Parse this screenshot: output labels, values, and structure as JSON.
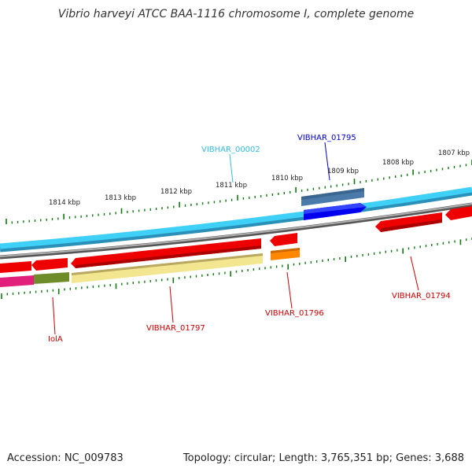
{
  "title": "Vibrio harveyi ATCC BAA-1116 chromosome I, complete genome",
  "footer": {
    "accession": "Accession: NC_009783",
    "summary": "Topology: circular; Length: 3,765,351 bp; Genes: 3,688"
  },
  "ticks": [
    "1814 kbp",
    "1813 kbp",
    "1812 kbp",
    "1811 kbp",
    "1810 kbp",
    "1809 kbp",
    "1808 kbp",
    "1807 kbp"
  ],
  "gene_labels": {
    "vibhar_00002": "VIBHAR_00002",
    "vibhar_01795": "VIBHAR_01795",
    "vibhar_01794": "VIBHAR_01794",
    "vibhar_01796": "VIBHAR_01796",
    "vibhar_01797": "VIBHAR_01797",
    "iola": "IolA"
  },
  "colors": {
    "blue_label": "#0000cc",
    "cyan_label": "#33bbdd",
    "red_label": "#cc0000",
    "cds": "#ee0000",
    "cyan_track": "#33ccf5",
    "blue_gene": "#0000ee",
    "steel_gene": "#4a7aaa",
    "orange_gene": "#ff8800",
    "yellow_gene": "#f2e690",
    "olive_gene": "#6f8c2a",
    "magenta_gene": "#e0207a",
    "tick_green": "#117711"
  }
}
